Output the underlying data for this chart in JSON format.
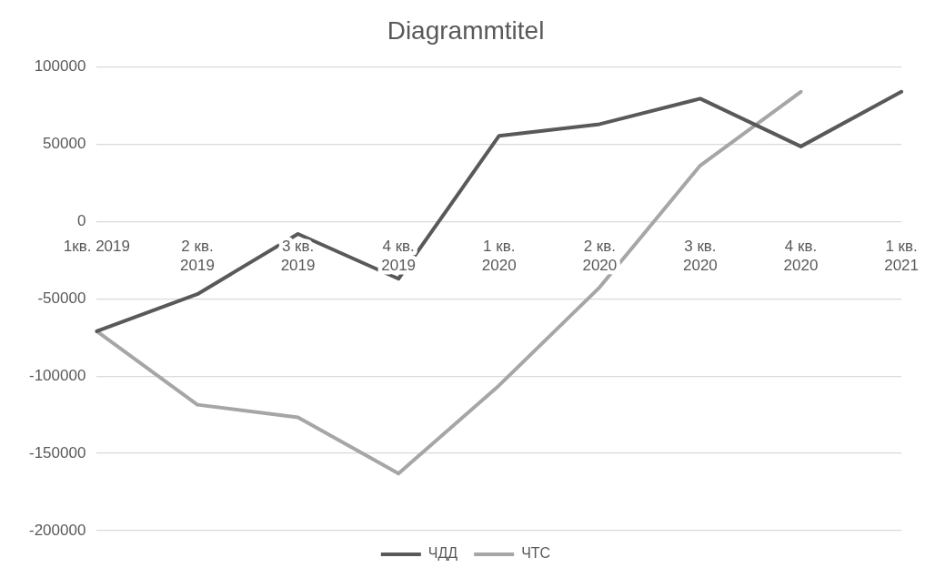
{
  "chart_data": {
    "type": "line",
    "title": "Diagrammtitel",
    "categories": [
      "1кв. 2019",
      "2 кв. 2019",
      "3 кв. 2019",
      "4 кв. 2019",
      "1 кв. 2020",
      "2 кв. 2020",
      "3 кв. 2020",
      "4 кв. 2020",
      "1 кв. 2021"
    ],
    "series": [
      {
        "name": "ЧДД",
        "color": "#595959",
        "values": [
          -71000,
          -47000,
          -8000,
          -37000,
          55500,
          63000,
          79500,
          48600,
          84000
        ]
      },
      {
        "name": "ЧТС",
        "color": "#a6a6a6",
        "values": [
          -71000,
          -118500,
          -126700,
          -163000,
          -106000,
          -42500,
          36300,
          84000,
          null
        ]
      }
    ],
    "ylim": [
      -200000,
      100000
    ],
    "yticks": [
      -200000,
      -150000,
      -100000,
      -50000,
      0,
      50000,
      100000
    ],
    "grid": "y",
    "legend": "bottom",
    "marker": "none",
    "line_style": "solid"
  }
}
